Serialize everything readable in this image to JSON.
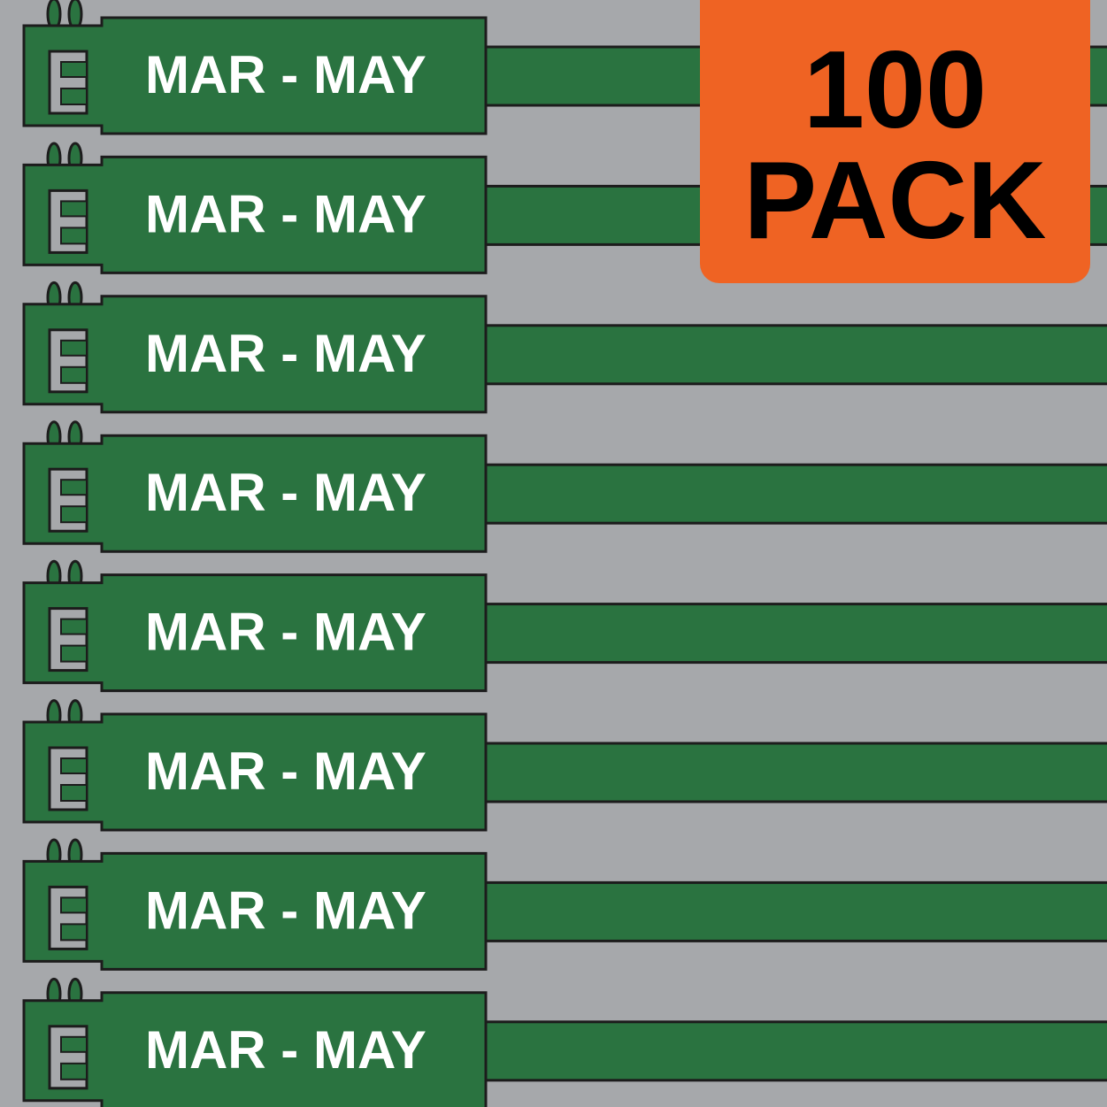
{
  "colors": {
    "background": "#a6a8ab",
    "tag": "#2a7340",
    "outline": "#1c1c1c",
    "badge": "#ef6323",
    "text": "#ffffff"
  },
  "tags": [
    {
      "label": "MAR - MAY",
      "icon": "letter-e-slot-icon"
    },
    {
      "label": "MAR - MAY",
      "icon": "letter-e-slot-icon"
    },
    {
      "label": "MAR - MAY",
      "icon": "letter-e-slot-icon"
    },
    {
      "label": "MAR - MAY",
      "icon": "letter-e-slot-icon"
    },
    {
      "label": "MAR - MAY",
      "icon": "letter-e-slot-icon"
    },
    {
      "label": "MAR - MAY",
      "icon": "letter-e-slot-icon"
    },
    {
      "label": "MAR - MAY",
      "icon": "letter-e-slot-icon"
    },
    {
      "label": "MAR - MAY",
      "icon": "letter-e-slot-icon"
    }
  ],
  "badge": {
    "line1": "100",
    "line2": "PACK"
  }
}
